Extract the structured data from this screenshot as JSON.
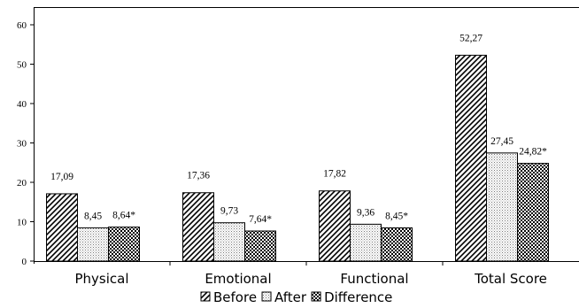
{
  "chart_data": {
    "type": "bar",
    "categories": [
      "Physical",
      "Emotional",
      "Functional",
      "Total Score"
    ],
    "series": [
      {
        "name": "Before",
        "pattern": "diagonal-hatch",
        "values": [
          17.09,
          17.36,
          17.82,
          52.27
        ],
        "labels": [
          "17,09",
          "17,36",
          "17,82",
          "52,27"
        ]
      },
      {
        "name": "After",
        "pattern": "fine-dots",
        "values": [
          8.45,
          9.73,
          9.36,
          27.45
        ],
        "labels": [
          "8,45",
          "9,73",
          "9,36",
          "27,45"
        ]
      },
      {
        "name": "Difference",
        "pattern": "checker",
        "values": [
          8.64,
          7.64,
          8.45,
          24.82
        ],
        "labels": [
          "8,64*",
          "7,64*",
          "8,45*",
          "24,82*"
        ]
      }
    ],
    "ylim": [
      0,
      60
    ],
    "yticks": [
      0,
      10,
      20,
      30,
      40,
      50,
      60
    ],
    "grid": false,
    "legend": "bottom",
    "colors": {
      "ink": "#000000",
      "background": "#ffffff"
    }
  }
}
